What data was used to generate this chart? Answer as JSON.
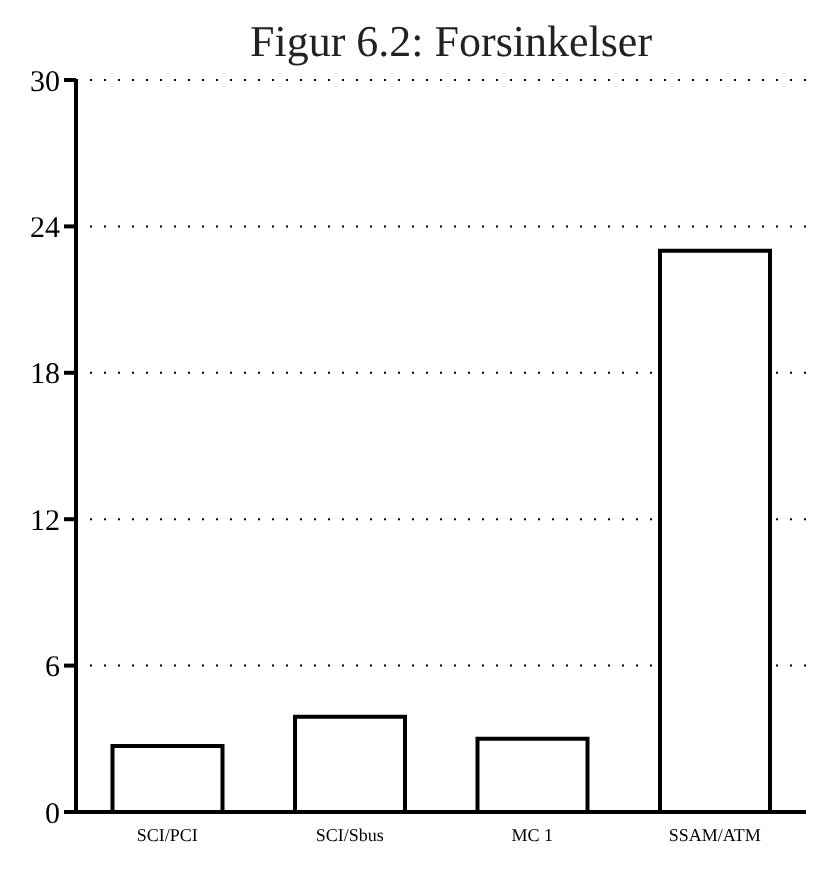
{
  "chart_data": {
    "type": "bar",
    "title": "Figur 6.2: Forsinkelser",
    "categories": [
      "SCI/PCI",
      "SCI/Sbus",
      "MC 1",
      "SSAM/ATM"
    ],
    "values": [
      2.7,
      3.9,
      3.0,
      23.0
    ],
    "color": "#ffffff",
    "ylim": [
      0,
      30
    ],
    "yticks": [
      0,
      6,
      12,
      18,
      24,
      30
    ],
    "grid": "y"
  }
}
